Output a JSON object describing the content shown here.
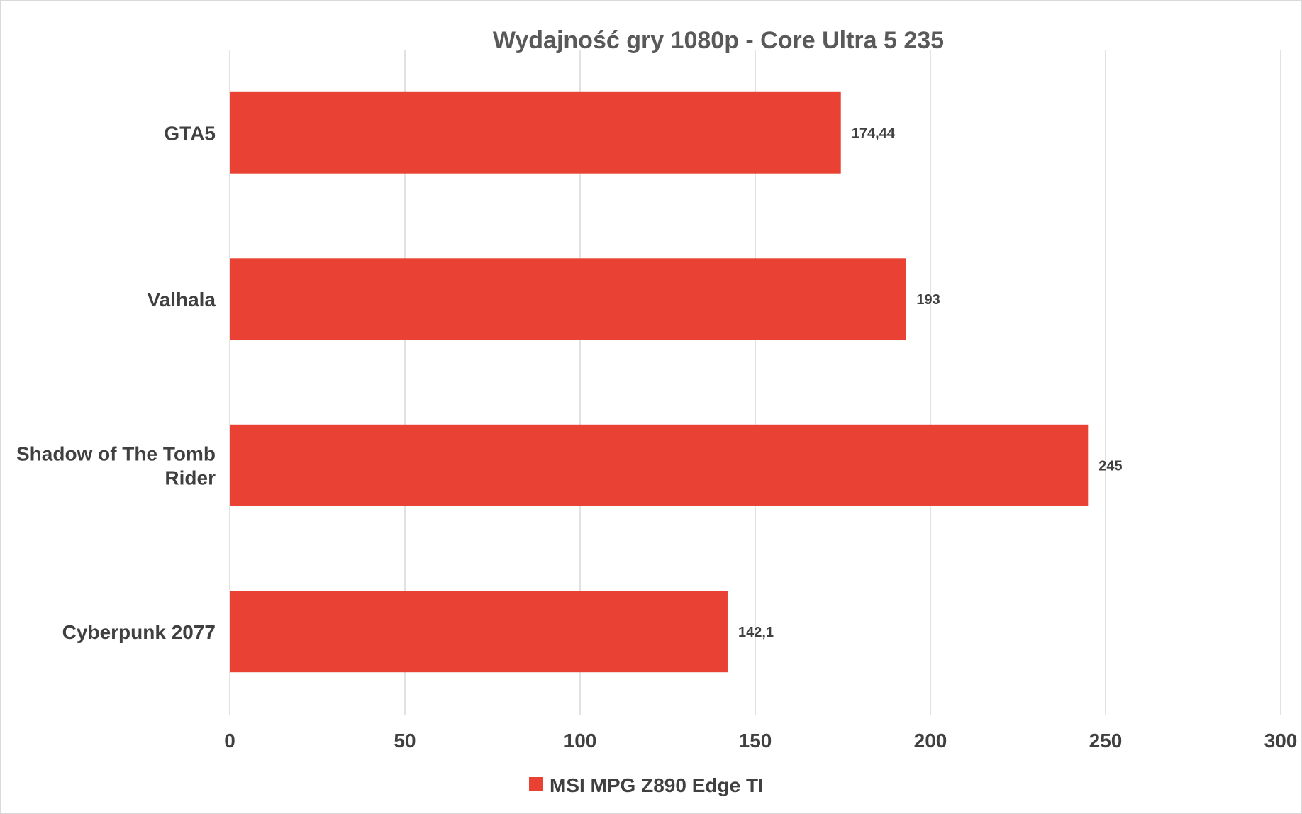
{
  "chart_data": {
    "type": "bar",
    "orientation": "horizontal",
    "title": "Wydajność gry 1080p - Core Ultra 5 235",
    "categories": [
      "GTA5",
      "Valhala",
      "Shadow of The Tomb Rider",
      "Cyberpunk 2077"
    ],
    "category_lines": [
      [
        "GTA5"
      ],
      [
        "Valhala"
      ],
      [
        "Shadow of The Tomb",
        "Rider"
      ],
      [
        "Cyberpunk 2077"
      ]
    ],
    "series": [
      {
        "name": "MSI MPG Z890 Edge TI",
        "values": [
          174.44,
          193,
          245,
          142.1
        ],
        "labels": [
          "174,44",
          "193",
          "245",
          "142,1"
        ],
        "color": "#e94235"
      }
    ],
    "xlim": [
      0,
      300
    ],
    "x_ticks": [
      0,
      50,
      100,
      150,
      200,
      250,
      300
    ],
    "grid": true,
    "legend_position": "bottom"
  }
}
